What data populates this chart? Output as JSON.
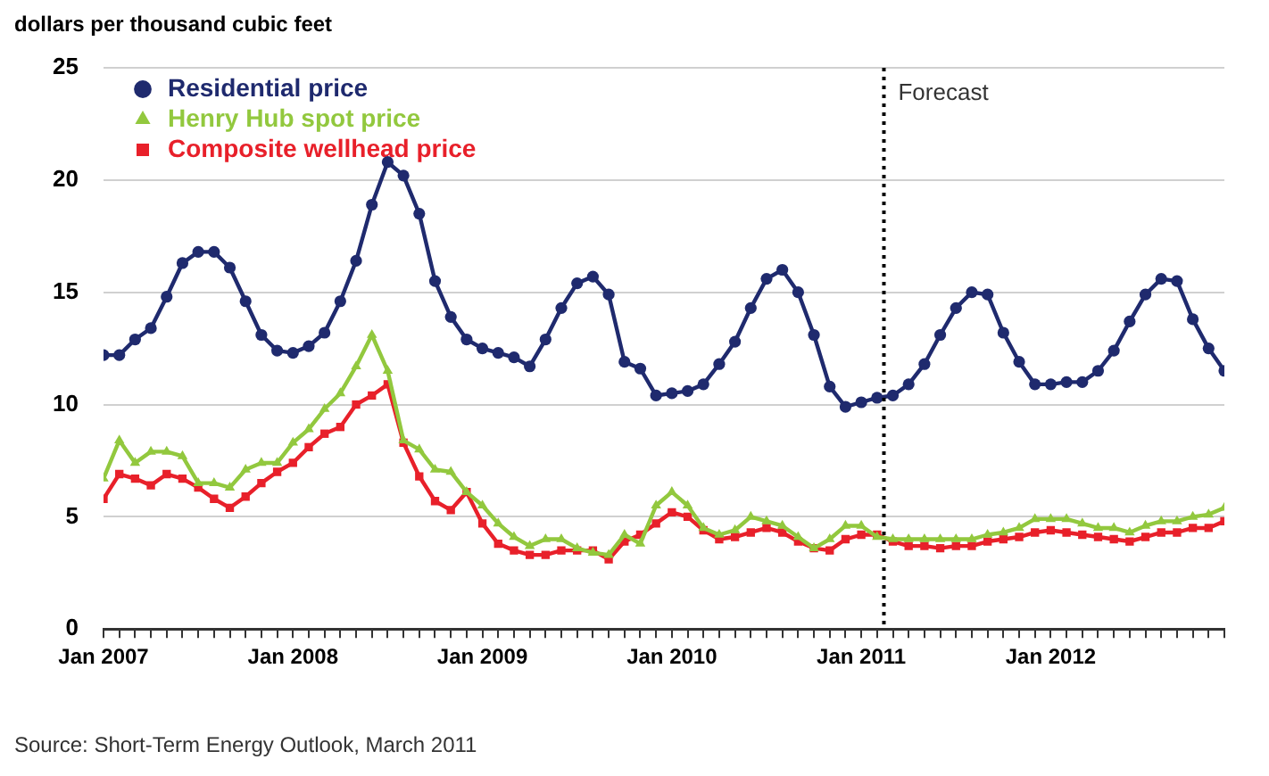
{
  "chart_data": {
    "type": "line",
    "ylabel": "dollars per thousand cubic feet",
    "x": [
      "2007-01",
      "2007-02",
      "2007-03",
      "2007-04",
      "2007-05",
      "2007-06",
      "2007-07",
      "2007-08",
      "2007-09",
      "2007-10",
      "2007-11",
      "2007-12",
      "2008-01",
      "2008-02",
      "2008-03",
      "2008-04",
      "2008-05",
      "2008-06",
      "2008-07",
      "2008-08",
      "2008-09",
      "2008-10",
      "2008-11",
      "2008-12",
      "2009-01",
      "2009-02",
      "2009-03",
      "2009-04",
      "2009-05",
      "2009-06",
      "2009-07",
      "2009-08",
      "2009-09",
      "2009-10",
      "2009-11",
      "2009-12",
      "2010-01",
      "2010-02",
      "2010-03",
      "2010-04",
      "2010-05",
      "2010-06",
      "2010-07",
      "2010-08",
      "2010-09",
      "2010-10",
      "2010-11",
      "2010-12",
      "2011-01",
      "2011-02",
      "2011-03",
      "2011-04",
      "2011-05",
      "2011-06",
      "2011-07",
      "2011-08",
      "2011-09",
      "2011-10",
      "2011-11",
      "2011-12",
      "2012-01",
      "2012-02",
      "2012-03",
      "2012-04",
      "2012-05",
      "2012-06",
      "2012-07",
      "2012-08",
      "2012-09",
      "2012-10",
      "2012-11",
      "2012-12"
    ],
    "series": [
      {
        "name": "Residential price",
        "color": "#1f2a6e",
        "marker": "circle",
        "values": [
          12.2,
          12.2,
          12.9,
          13.4,
          14.8,
          16.3,
          16.8,
          16.8,
          16.1,
          14.6,
          13.1,
          12.4,
          12.3,
          12.6,
          13.2,
          14.6,
          16.4,
          18.9,
          20.8,
          20.2,
          18.5,
          15.5,
          13.9,
          12.9,
          12.5,
          12.3,
          12.1,
          11.7,
          12.9,
          14.3,
          15.4,
          15.7,
          14.9,
          11.9,
          11.6,
          10.4,
          10.5,
          10.6,
          10.9,
          11.8,
          12.8,
          14.3,
          15.6,
          16.0,
          15.0,
          13.1,
          10.8,
          9.9,
          10.1,
          10.3,
          10.4,
          10.9,
          11.8,
          13.1,
          14.3,
          15.0,
          14.9,
          13.2,
          11.9,
          10.9,
          10.9,
          11.0,
          11.0,
          11.5,
          12.4,
          13.7,
          14.9,
          15.6,
          15.5,
          13.8,
          12.5,
          11.5
        ]
      },
      {
        "name": "Henry Hub spot price",
        "color": "#92c83e",
        "marker": "triangle",
        "values": [
          6.7,
          8.4,
          7.4,
          7.9,
          7.9,
          7.7,
          6.5,
          6.5,
          6.3,
          7.1,
          7.4,
          7.4,
          8.3,
          8.9,
          9.8,
          10.5,
          11.7,
          13.1,
          11.5,
          8.4,
          8.0,
          7.1,
          7.0,
          6.1,
          5.5,
          4.7,
          4.1,
          3.7,
          4.0,
          4.0,
          3.6,
          3.4,
          3.3,
          4.2,
          3.8,
          5.5,
          6.1,
          5.5,
          4.5,
          4.2,
          4.4,
          5.0,
          4.8,
          4.6,
          4.1,
          3.6,
          4.0,
          4.6,
          4.6,
          4.1,
          4.0,
          4.0,
          4.0,
          4.0,
          4.0,
          4.0,
          4.2,
          4.3,
          4.5,
          4.9,
          4.9,
          4.9,
          4.7,
          4.5,
          4.5,
          4.3,
          4.6,
          4.8,
          4.8,
          5.0,
          5.1,
          5.4
        ]
      },
      {
        "name": "Composite wellhead price",
        "color": "#e8202a",
        "marker": "square",
        "values": [
          5.8,
          6.9,
          6.7,
          6.4,
          6.9,
          6.7,
          6.3,
          5.8,
          5.4,
          5.9,
          6.5,
          7.0,
          7.4,
          8.1,
          8.7,
          9.0,
          10.0,
          10.4,
          10.9,
          8.3,
          6.8,
          5.7,
          5.3,
          6.1,
          4.7,
          3.8,
          3.5,
          3.3,
          3.3,
          3.5,
          3.5,
          3.5,
          3.1,
          3.9,
          4.2,
          4.7,
          5.2,
          5.0,
          4.4,
          4.0,
          4.1,
          4.3,
          4.5,
          4.3,
          3.9,
          3.6,
          3.5,
          4.0,
          4.2,
          4.2,
          3.9,
          3.7,
          3.7,
          3.6,
          3.7,
          3.7,
          3.9,
          4.0,
          4.1,
          4.3,
          4.4,
          4.3,
          4.2,
          4.1,
          4.0,
          3.9,
          4.1,
          4.3,
          4.3,
          4.5,
          4.5,
          4.8
        ]
      }
    ],
    "xlim": [
      "2007-01",
      "2012-12"
    ],
    "xticks": [
      {
        "value": "2007-01",
        "label": "Jan 2007"
      },
      {
        "value": "2007-02",
        "label": null
      },
      {
        "value": "2007-03",
        "label": null
      },
      {
        "value": "2007-04",
        "label": null
      },
      {
        "value": "2007-05",
        "label": null
      },
      {
        "value": "2007-06",
        "label": null
      },
      {
        "value": "2007-07",
        "label": null
      },
      {
        "value": "2007-08",
        "label": null
      },
      {
        "value": "2007-09",
        "label": null
      },
      {
        "value": "2007-10",
        "label": null
      },
      {
        "value": "2007-11",
        "label": null
      },
      {
        "value": "2007-12",
        "label": null
      },
      {
        "value": "2008-01",
        "label": "Jan 2008"
      },
      {
        "value": "2008-02",
        "label": null
      },
      {
        "value": "2008-03",
        "label": null
      },
      {
        "value": "2008-04",
        "label": null
      },
      {
        "value": "2008-05",
        "label": null
      },
      {
        "value": "2008-06",
        "label": null
      },
      {
        "value": "2008-07",
        "label": null
      },
      {
        "value": "2008-08",
        "label": null
      },
      {
        "value": "2008-09",
        "label": null
      },
      {
        "value": "2008-10",
        "label": null
      },
      {
        "value": "2008-11",
        "label": null
      },
      {
        "value": "2008-12",
        "label": null
      },
      {
        "value": "2009-01",
        "label": "Jan 2009"
      },
      {
        "value": "2009-02",
        "label": null
      },
      {
        "value": "2009-03",
        "label": null
      },
      {
        "value": "2009-04",
        "label": null
      },
      {
        "value": "2009-05",
        "label": null
      },
      {
        "value": "2009-06",
        "label": null
      },
      {
        "value": "2009-07",
        "label": null
      },
      {
        "value": "2009-08",
        "label": null
      },
      {
        "value": "2009-09",
        "label": null
      },
      {
        "value": "2009-10",
        "label": null
      },
      {
        "value": "2009-11",
        "label": null
      },
      {
        "value": "2009-12",
        "label": null
      },
      {
        "value": "2010-01",
        "label": "Jan 2010"
      },
      {
        "value": "2010-02",
        "label": null
      },
      {
        "value": "2010-03",
        "label": null
      },
      {
        "value": "2010-04",
        "label": null
      },
      {
        "value": "2010-05",
        "label": null
      },
      {
        "value": "2010-06",
        "label": null
      },
      {
        "value": "2010-07",
        "label": null
      },
      {
        "value": "2010-08",
        "label": null
      },
      {
        "value": "2010-09",
        "label": null
      },
      {
        "value": "2010-10",
        "label": null
      },
      {
        "value": "2010-11",
        "label": null
      },
      {
        "value": "2010-12",
        "label": null
      },
      {
        "value": "2011-01",
        "label": "Jan 2011"
      },
      {
        "value": "2011-02",
        "label": null
      },
      {
        "value": "2011-03",
        "label": null
      },
      {
        "value": "2011-04",
        "label": null
      },
      {
        "value": "2011-05",
        "label": null
      },
      {
        "value": "2011-06",
        "label": null
      },
      {
        "value": "2011-07",
        "label": null
      },
      {
        "value": "2011-08",
        "label": null
      },
      {
        "value": "2011-09",
        "label": null
      },
      {
        "value": "2011-10",
        "label": null
      },
      {
        "value": "2011-11",
        "label": null
      },
      {
        "value": "2011-12",
        "label": null
      },
      {
        "value": "2012-01",
        "label": "Jan 2012"
      },
      {
        "value": "2012-02",
        "label": null
      },
      {
        "value": "2012-03",
        "label": null
      },
      {
        "value": "2012-04",
        "label": null
      },
      {
        "value": "2012-05",
        "label": null
      },
      {
        "value": "2012-06",
        "label": null
      },
      {
        "value": "2012-07",
        "label": null
      },
      {
        "value": "2012-08",
        "label": null
      },
      {
        "value": "2012-09",
        "label": null
      },
      {
        "value": "2012-10",
        "label": null
      },
      {
        "value": "2012-11",
        "label": null
      },
      {
        "value": "2012-12",
        "label": null
      }
    ],
    "ylim": [
      0,
      25
    ],
    "yticks": [
      0,
      5,
      10,
      15,
      20,
      25
    ],
    "grid": "y",
    "legend": "top left",
    "ref_lines": [
      {
        "axis": "x",
        "value": "2011-02-14",
        "label": "Forecast",
        "color": "#000000",
        "line_style": "dotted"
      }
    ],
    "annotations": [
      "Source: Short-Term Energy Outlook, March 2011"
    ]
  }
}
